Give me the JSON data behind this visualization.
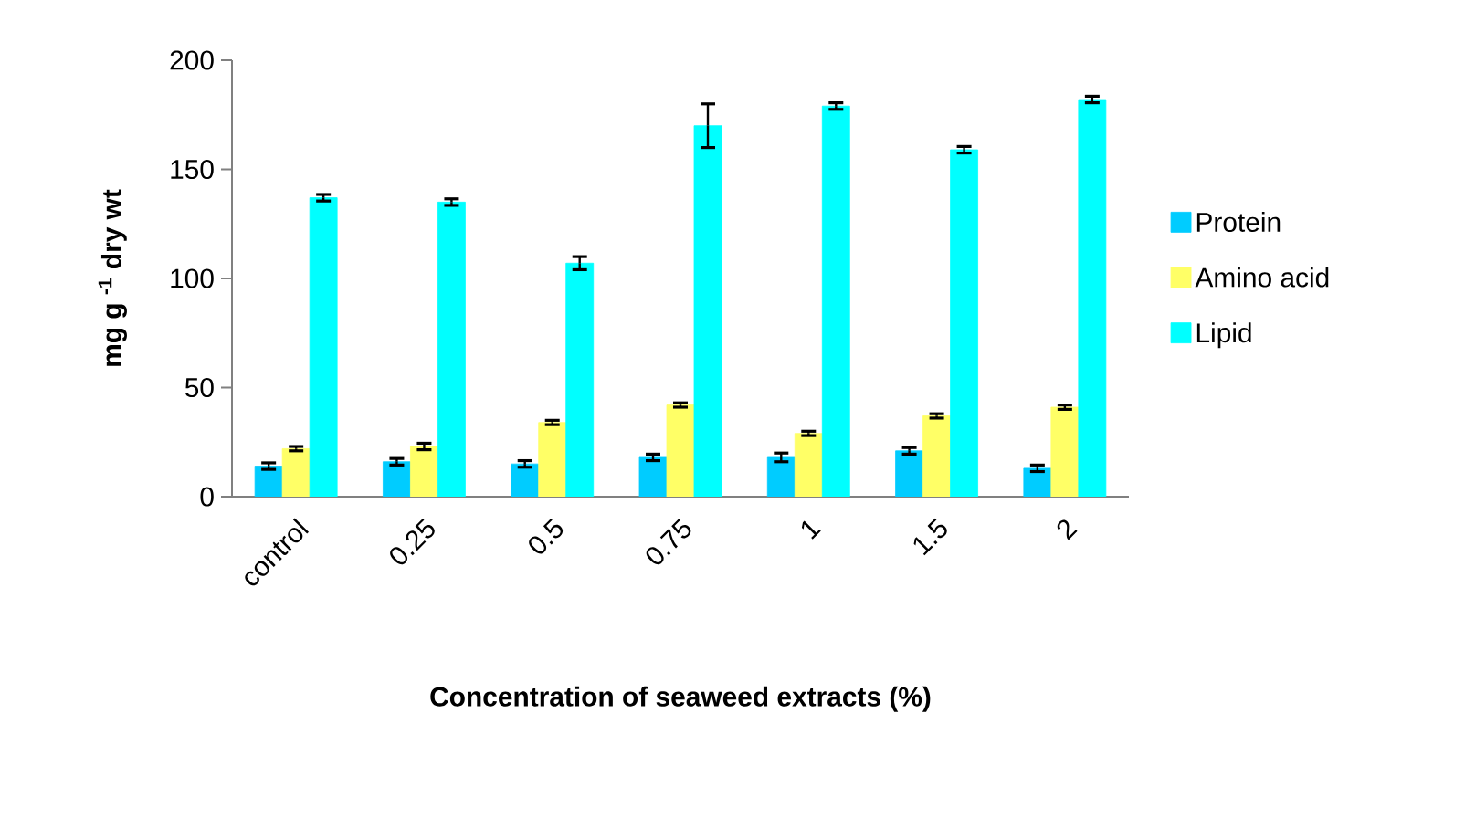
{
  "chart_data": {
    "type": "bar",
    "xlabel": "Concentration of seaweed extracts (%)",
    "ylabel": "mg g $^{-1}$ dry wt",
    "categories": [
      "control",
      "0.25",
      "0.5",
      "0.75",
      "1",
      "1.5",
      "2"
    ],
    "series": [
      {
        "name": "Protein",
        "color": "#00ccff",
        "values": [
          14,
          16,
          15,
          18,
          18,
          21,
          13
        ],
        "errors": [
          1.5,
          1.5,
          1.5,
          1.5,
          2,
          1.5,
          1.5
        ]
      },
      {
        "name": "Amino acid",
        "color": "#ffff66",
        "values": [
          22,
          23,
          34,
          42,
          29,
          37,
          41
        ],
        "errors": [
          1,
          1.5,
          1,
          1,
          1,
          1,
          1
        ]
      },
      {
        "name": "Lipid",
        "color": "#00ffff",
        "values": [
          137,
          135,
          107,
          170,
          179,
          159,
          182
        ],
        "errors": [
          1.5,
          1.5,
          3,
          10,
          1.5,
          1.5,
          1.5
        ]
      }
    ],
    "ylim": [
      0,
      200
    ],
    "yticks": [
      0,
      50,
      100,
      150,
      200
    ],
    "grid": false,
    "legend": "right"
  }
}
